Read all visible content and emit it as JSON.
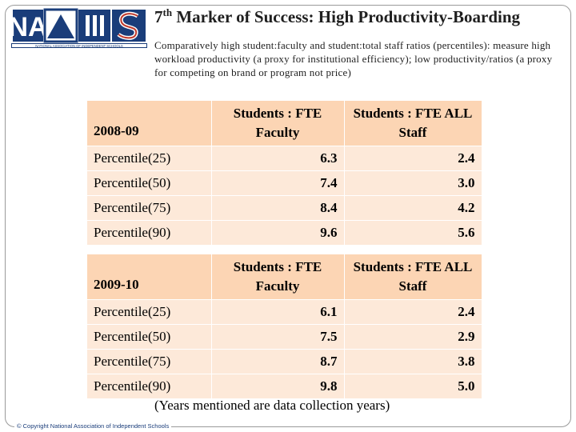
{
  "slide": {
    "title_number": "7",
    "title_sup": "th",
    "title_rest": " Marker of Success: High Productivity-Boarding",
    "subtitle": "Comparatively high student:faculty and student:total staff ratios (percentiles): measure high workload productivity (a proxy for institutional efficiency); low productivity/ratios (a proxy for competing on brand or program not price)",
    "note": "(Years mentioned are data collection years)",
    "copyright": "© Copyright National Association of Independent Schools"
  },
  "logo": {
    "letters": "NA",
    "caption": "NATIONAL ASSOCIATION OF INDEPENDENT SCHOOLS",
    "brand_color": "#1a3d7a",
    "accent_color": "#c0392b"
  },
  "tables": [
    {
      "year": "2008-09",
      "col1": "Students : FTE Faculty",
      "col2": "Students : FTE ALL Staff",
      "rows": [
        {
          "label": "Percentile(25)",
          "faculty": "6.3",
          "staff": "2.4"
        },
        {
          "label": "Percentile(50)",
          "faculty": "7.4",
          "staff": "3.0"
        },
        {
          "label": "Percentile(75)",
          "faculty": "8.4",
          "staff": "4.2"
        },
        {
          "label": "Percentile(90)",
          "faculty": "9.6",
          "staff": "5.6"
        }
      ]
    },
    {
      "year": "2009-10",
      "col1": "Students : FTE Faculty",
      "col2": "Students : FTE ALL Staff",
      "rows": [
        {
          "label": "Percentile(25)",
          "faculty": "6.1",
          "staff": "2.4"
        },
        {
          "label": "Percentile(50)",
          "faculty": "7.5",
          "staff": "2.9"
        },
        {
          "label": "Percentile(75)",
          "faculty": "8.7",
          "staff": "3.8"
        },
        {
          "label": "Percentile(90)",
          "faculty": "9.8",
          "staff": "5.0"
        }
      ]
    }
  ]
}
